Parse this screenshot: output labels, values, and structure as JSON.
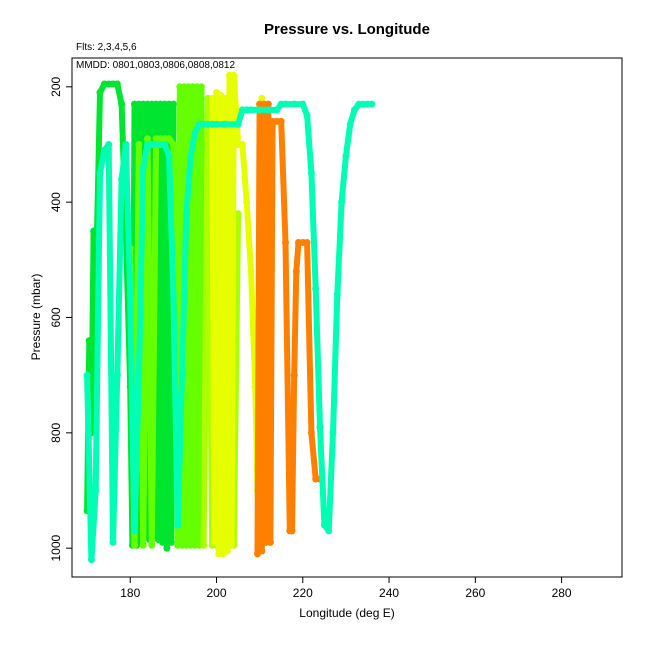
{
  "chart_data": {
    "type": "line",
    "title": "Pressure vs. Longitude",
    "xlabel": "Longitude (deg E)",
    "ylabel": "Pressure (mbar)",
    "annotations": [
      "Flts: 2,3,4,5,6",
      "MMDD: 0801,0803,0806,0808,0812"
    ],
    "xlim": [
      166.5,
      294
    ],
    "ylim": [
      1050,
      150
    ],
    "y_reversed": true,
    "grid": false,
    "legend": "none",
    "x_ticks": [
      180,
      200,
      220,
      240,
      260,
      280
    ],
    "y_ticks": [
      200,
      400,
      600,
      800,
      1000
    ],
    "series": [
      {
        "color": "#00e62e",
        "x": [
          170,
          170.5,
          171,
          171.5,
          172,
          173,
          174,
          175,
          176,
          177,
          178,
          179,
          180,
          180.5,
          181,
          181.5,
          182,
          182.5,
          183,
          183.5,
          184,
          184.5,
          185,
          185.5,
          186,
          186.5,
          187,
          187.5,
          188,
          188.5,
          189,
          189.5,
          190
        ],
        "y": [
          935,
          640,
          800,
          450,
          560,
          210,
          195,
          195,
          195,
          195,
          230,
          450,
          720,
          995,
          230,
          995,
          230,
          990,
          230,
          980,
          230,
          985,
          230,
          980,
          230,
          985,
          230,
          990,
          230,
          1000,
          230,
          990,
          230
        ]
      },
      {
        "color": "#66ff00",
        "x": [
          180,
          181,
          182,
          183,
          184,
          185,
          186,
          187,
          188,
          189,
          190,
          191,
          191.5,
          192,
          192.5,
          193,
          193.5,
          194,
          194.5,
          195,
          195.5,
          196,
          196.5,
          197
        ],
        "y": [
          480,
          995,
          300,
          995,
          290,
          995,
          290,
          290,
          290,
          290,
          300,
          995,
          200,
          995,
          200,
          995,
          200,
          995,
          200,
          995,
          200,
          995,
          200,
          995
        ]
      },
      {
        "color": "#aaff00",
        "x": [
          197,
          198,
          199,
          199.5,
          200,
          200.5,
          201,
          201.5,
          202,
          203,
          203.5,
          204,
          205
        ],
        "y": [
          995,
          220,
          995,
          300,
          995,
          300,
          300,
          300,
          300,
          300,
          420,
          995,
          420
        ]
      },
      {
        "color": "#e6ff00",
        "x": [
          199,
          199.5,
          200,
          200.5,
          201,
          201.5,
          202,
          202.5,
          203,
          203.5,
          204,
          205,
          206,
          207,
          208,
          209,
          209.5,
          210,
          210.5
        ],
        "y": [
          220,
          990,
          210,
          1010,
          215,
          1010,
          220,
          1005,
          180,
          995,
          180,
          300,
          300,
          400,
          520,
          720,
          900,
          995,
          220
        ]
      },
      {
        "color": "#ff8000",
        "x": [
          209.5,
          210,
          210.5,
          211,
          211.5,
          212,
          212.5,
          213,
          214,
          215,
          216,
          217,
          217.5,
          218,
          218.5,
          219,
          220,
          221,
          222,
          223,
          224
        ],
        "y": [
          1010,
          230,
          1005,
          230,
          990,
          230,
          990,
          260,
          260,
          260,
          470,
          970,
          970,
          700,
          520,
          470,
          470,
          470,
          800,
          880,
          880
        ]
      },
      {
        "color": "#00ffb4",
        "x": [
          170,
          171,
          172,
          173,
          174,
          175,
          176,
          177,
          178,
          179,
          180,
          181,
          182,
          183,
          184,
          185,
          186,
          187,
          188,
          189,
          190,
          191,
          192,
          193,
          194,
          195,
          196,
          197,
          198,
          199,
          200,
          202,
          205,
          206,
          207,
          208,
          210,
          212,
          214,
          215,
          216,
          218,
          220,
          221,
          222,
          223,
          224,
          225,
          226,
          227,
          228,
          229,
          230,
          231,
          232,
          233,
          234,
          235,
          236
        ],
        "y": [
          700,
          1020,
          900,
          350,
          310,
          300,
          990,
          700,
          360,
          300,
          560,
          970,
          700,
          340,
          300,
          300,
          300,
          300,
          300,
          320,
          560,
          960,
          700,
          420,
          320,
          280,
          265,
          265,
          265,
          265,
          265,
          265,
          265,
          240,
          240,
          240,
          240,
          240,
          240,
          230,
          230,
          230,
          230,
          250,
          350,
          550,
          790,
          960,
          970,
          800,
          560,
          400,
          320,
          265,
          240,
          230,
          230,
          230,
          230
        ]
      }
    ]
  }
}
